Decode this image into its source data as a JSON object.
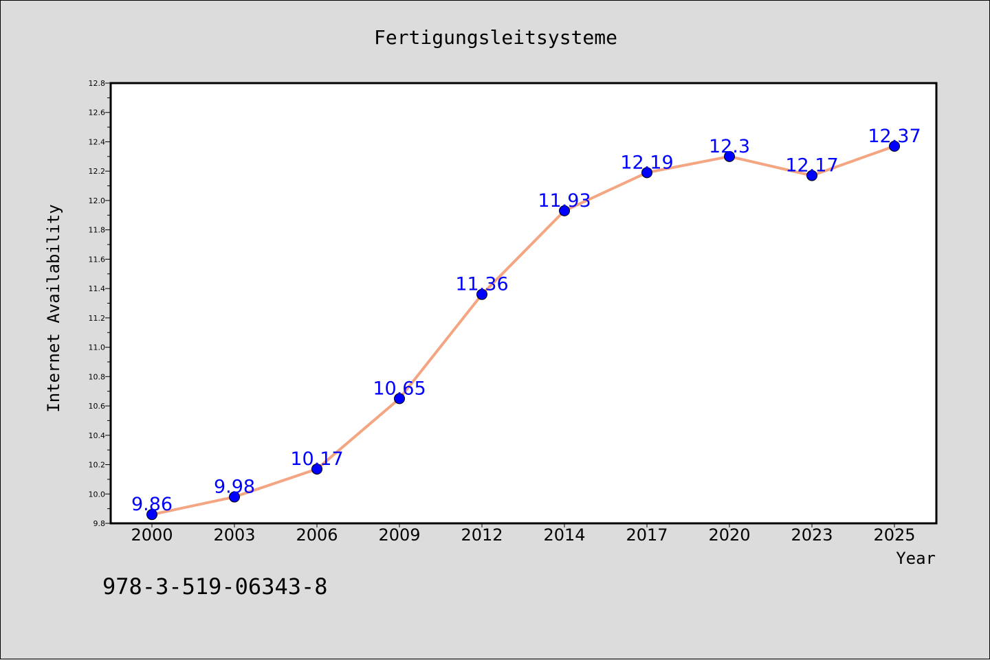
{
  "chart_data": {
    "type": "line",
    "title": "Fertigungsleitsysteme",
    "xlabel": "Year",
    "ylabel": "Internet Availability",
    "categories": [
      "2000",
      "2003",
      "2006",
      "2009",
      "2012",
      "2014",
      "2017",
      "2020",
      "2023",
      "2025"
    ],
    "series": [
      {
        "values": [
          9.86,
          9.98,
          10.17,
          10.65,
          11.36,
          11.93,
          12.19,
          12.3,
          12.17,
          12.37
        ],
        "labels": [
          "9.86",
          "9.98",
          "10.17",
          "10.65",
          "11.36",
          "11.93",
          "12.19",
          "12.3",
          "12.17",
          "12.37"
        ],
        "line_color": "#f4a582",
        "marker_color": "#0000ff",
        "label_color": "#0000ff"
      }
    ],
    "ylim": [
      9.8,
      12.8
    ],
    "y_ticks": [
      "9.8",
      "10.0",
      "10.2",
      "10.4",
      "10.6",
      "10.8",
      "11.0",
      "11.2",
      "11.4",
      "11.6",
      "11.8",
      "12.0",
      "12.2",
      "12.4",
      "12.6",
      "12.8"
    ],
    "grid": false,
    "legend": "none",
    "background_color": "#dcdcdc",
    "plot_background_color": "#ffffff"
  },
  "footer": {
    "isbn": "978-3-519-06343-8"
  }
}
